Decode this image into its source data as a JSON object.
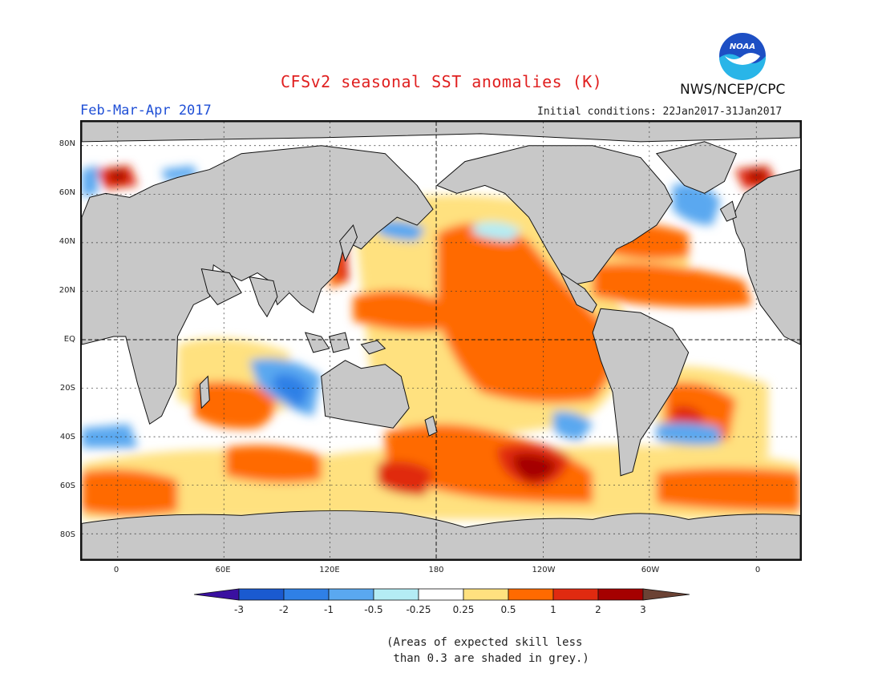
{
  "title": "CFSv2 seasonal SST anomalies (K)",
  "period": "Feb-Mar-Apr 2017",
  "initial_conditions": "Initial conditions: 22Jan2017-31Jan2017",
  "agency": "NWS/NCEP/CPC",
  "logo_text": "NOAA",
  "lat_labels": [
    "80N",
    "60N",
    "40N",
    "20N",
    "EQ",
    "20S",
    "40S",
    "60S",
    "80S"
  ],
  "lon_labels": [
    "0",
    "60E",
    "120E",
    "180",
    "120W",
    "60W",
    "0"
  ],
  "colorbar": {
    "labels": [
      "-3",
      "-2",
      "-1",
      "-0.5",
      "-0.25",
      "0.25",
      "0.5",
      "1",
      "2",
      "3"
    ],
    "colors": [
      "#3a10a0",
      "#1a5ad0",
      "#2f80e6",
      "#5aa8f0",
      "#b4ecf4",
      "#ffffff",
      "#ffe17f",
      "#ff6a00",
      "#e02a10",
      "#a50000",
      "#6b4234"
    ]
  },
  "colors": {
    "land": "#c8c8c8",
    "skill_grey": "#c8c8c8",
    "title": "#e02020",
    "period": "#1f4fd6"
  },
  "note_line1": "(Areas of expected skill less",
  "note_line2": " than 0.3 are shaded in grey.)"
}
